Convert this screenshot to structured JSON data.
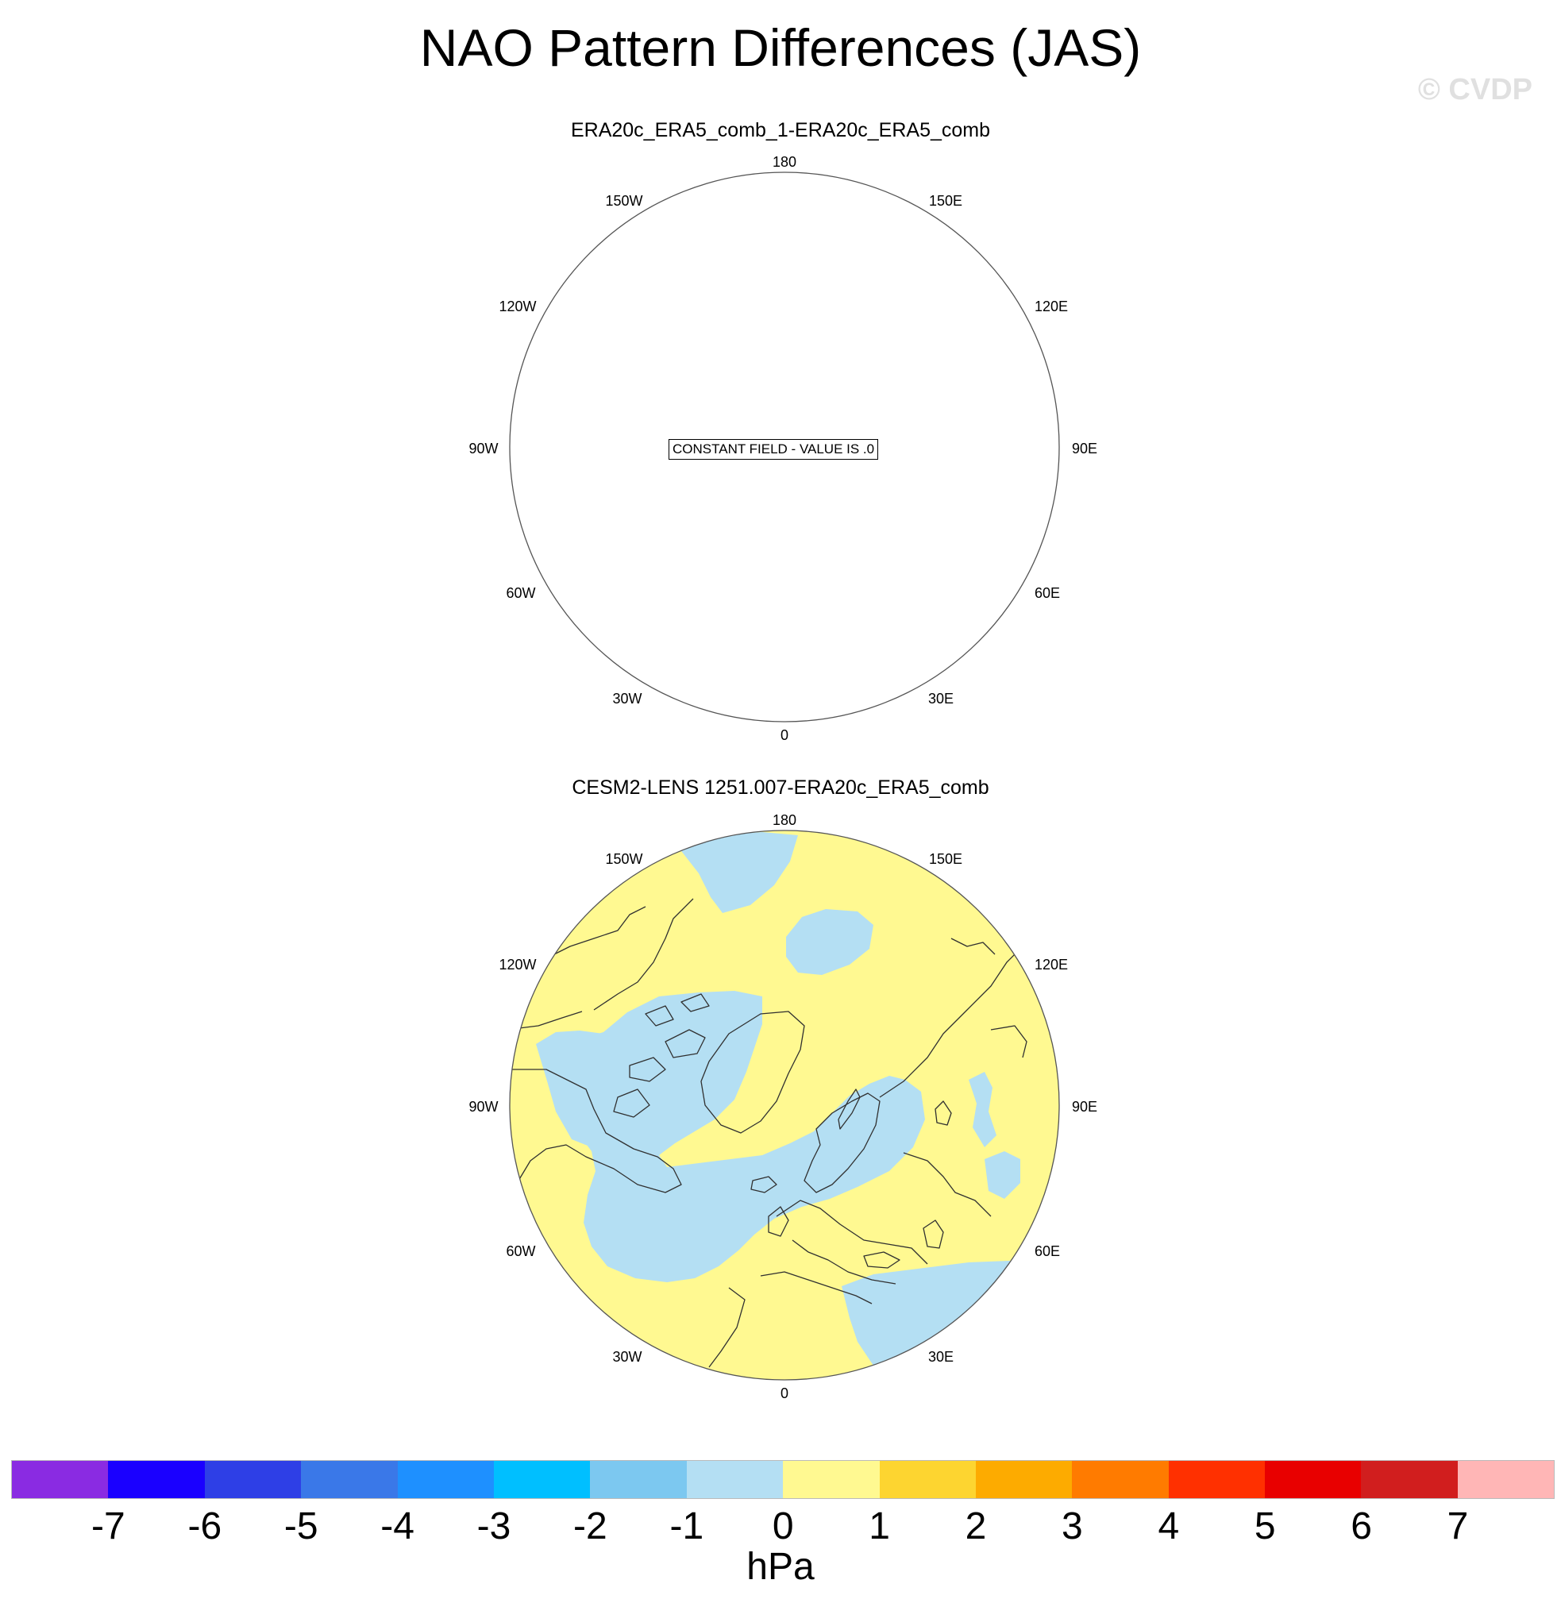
{
  "figure": {
    "title": "NAO Pattern Differences (JAS)",
    "watermark": "© CVDP"
  },
  "panels": [
    {
      "title": "ERA20c_ERA5_comb_1-ERA20c_ERA5_comb",
      "annotation": "CONSTANT FIELD - VALUE IS .0",
      "fill": "none"
    },
    {
      "title": "CESM2-LENS 1251.007-ERA20c_ERA5_comb",
      "fill": "difference field, mostly 0 to 1 hPa (yellow) with -1 to 0 hPa (light blue) regions"
    }
  ],
  "longitude_labels": {
    "top": "180",
    "upper_left": "150W",
    "upper_right": "150E",
    "mid_upper_left": "120W",
    "mid_upper_right": "120E",
    "left": "90W",
    "right": "90E",
    "mid_lower_left": "60W",
    "mid_lower_right": "60E",
    "lower_left": "30W",
    "lower_right": "30E",
    "bottom": "0"
  },
  "colorbar": {
    "units": "hPa",
    "labels": [
      "-7",
      "-6",
      "-5",
      "-4",
      "-3",
      "-2",
      "-1",
      "0",
      "1",
      "2",
      "3",
      "4",
      "5",
      "6",
      "7"
    ],
    "colors": [
      "#8a2be2",
      "#1a00ff",
      "#2e3fe6",
      "#3a78e8",
      "#1e90ff",
      "#00bfff",
      "#7cc8f0",
      "#b4dff3",
      "#fff991",
      "#fdd530",
      "#fdab00",
      "#ff7b00",
      "#ff3000",
      "#e80000",
      "#d11e1e",
      "#ffb6b6"
    ]
  },
  "legend_colors": {
    "positive_small": "#fff991",
    "negative_small": "#b4dff3",
    "coastline": "#303030"
  }
}
